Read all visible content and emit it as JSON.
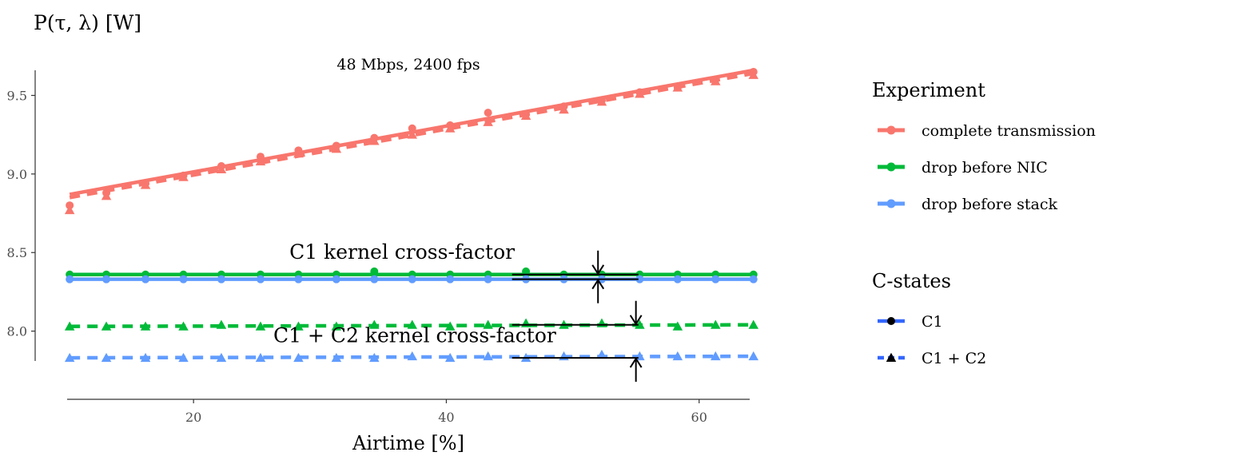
{
  "chart_data": {
    "type": "scatter",
    "title": "48 Mbps, 2400 fps",
    "ylabel": "P(τ, λ) [W]",
    "xlabel": "Airtime [%]",
    "xlim": [
      10,
      64
    ],
    "ylim": [
      7.81,
      9.66
    ],
    "x_ticks": [
      20,
      40,
      60
    ],
    "x_tick_labels": [
      "20",
      "40",
      "60"
    ],
    "y_ticks": [
      8.0,
      8.5,
      9.0,
      9.5
    ],
    "y_tick_labels": [
      "8.0",
      "8.5",
      "9.0",
      "9.5"
    ],
    "grid": false,
    "legend_position": "right",
    "x": [
      10.2,
      13.1,
      16.2,
      19.2,
      22.2,
      25.3,
      28.3,
      31.3,
      34.3,
      37.3,
      40.3,
      43.3,
      46.3,
      49.3,
      52.3,
      55.3,
      58.3,
      61.3,
      64.3
    ],
    "series": [
      {
        "name": "complete transmission",
        "experiment": "complete transmission",
        "cstates": "C1",
        "color": "#F8766D",
        "shape": "circle",
        "linetype": "solid",
        "values": [
          8.8,
          8.88,
          8.94,
          8.99,
          9.05,
          9.11,
          9.15,
          9.18,
          9.23,
          9.29,
          9.31,
          9.39,
          9.38,
          9.43,
          9.47,
          9.52,
          9.55,
          9.6,
          9.65
        ],
        "fit": [
          8.87,
          9.66
        ]
      },
      {
        "name": "complete transmission",
        "experiment": "complete transmission",
        "cstates": "C1 + C2",
        "color": "#F8766D",
        "shape": "triangle",
        "linetype": "dashed",
        "values": [
          8.77,
          8.86,
          8.93,
          8.98,
          9.03,
          9.08,
          9.13,
          9.16,
          9.21,
          9.25,
          9.29,
          9.33,
          9.37,
          9.41,
          9.46,
          9.51,
          9.55,
          9.59,
          9.63
        ],
        "fit": [
          8.85,
          9.64
        ]
      },
      {
        "name": "drop before NIC",
        "experiment": "drop before NIC",
        "cstates": "C1",
        "color": "#00BA38",
        "shape": "circle",
        "linetype": "solid",
        "values": [
          8.36,
          8.36,
          8.36,
          8.36,
          8.36,
          8.36,
          8.36,
          8.36,
          8.38,
          8.36,
          8.36,
          8.36,
          8.38,
          8.36,
          8.36,
          8.36,
          8.36,
          8.36,
          8.36
        ],
        "fit": [
          8.36,
          8.36
        ]
      },
      {
        "name": "drop before NIC",
        "experiment": "drop before NIC",
        "cstates": "C1 + C2",
        "color": "#00BA38",
        "shape": "triangle",
        "linetype": "dashed",
        "values": [
          8.03,
          8.03,
          8.03,
          8.03,
          8.04,
          8.03,
          8.03,
          8.03,
          8.04,
          8.04,
          8.03,
          8.04,
          8.05,
          8.04,
          8.05,
          8.04,
          8.03,
          8.04,
          8.04
        ],
        "fit": [
          8.03,
          8.04
        ]
      },
      {
        "name": "drop before stack",
        "experiment": "drop before stack",
        "cstates": "C1",
        "color": "#619CFF",
        "shape": "circle",
        "linetype": "solid",
        "values": [
          8.33,
          8.33,
          8.33,
          8.33,
          8.33,
          8.33,
          8.33,
          8.33,
          8.33,
          8.33,
          8.33,
          8.33,
          8.33,
          8.33,
          8.33,
          8.33,
          8.33,
          8.33,
          8.33
        ],
        "fit": [
          8.33,
          8.33
        ]
      },
      {
        "name": "drop before stack",
        "experiment": "drop before stack",
        "cstates": "C1 + C2",
        "color": "#619CFF",
        "shape": "triangle",
        "linetype": "dashed",
        "values": [
          7.83,
          7.83,
          7.83,
          7.83,
          7.83,
          7.83,
          7.83,
          7.83,
          7.83,
          7.84,
          7.83,
          7.84,
          7.83,
          7.84,
          7.85,
          7.84,
          7.84,
          7.84,
          7.84
        ],
        "fit": [
          7.83,
          7.84
        ]
      }
    ],
    "annotations": [
      {
        "text": "C1 kernel cross-factor",
        "x_text": 36.5,
        "y_text": 8.46,
        "x_start": 45.2,
        "x_end": 55.2,
        "y_top": 8.36,
        "y_bottom": 8.33,
        "x_arrow": 52
      },
      {
        "text": "C1 + C2 kernel cross-factor",
        "x_text": 37.5,
        "y_text": 7.93,
        "x_start": 45.2,
        "x_end": 55.2,
        "y_top": 8.04,
        "y_bottom": 7.83,
        "x_arrow": 55
      }
    ],
    "legend": {
      "experiment_title": "Experiment",
      "experiment_items": [
        {
          "label": "complete transmission",
          "color": "#F8766D"
        },
        {
          "label": "drop before NIC",
          "color": "#00BA38"
        },
        {
          "label": "drop before stack",
          "color": "#619CFF"
        }
      ],
      "cstates_title": "C-states",
      "cstates_items": [
        {
          "label": "C1",
          "shape": "circle",
          "linetype": "solid"
        },
        {
          "label": "C1 + C2",
          "shape": "triangle",
          "linetype": "dashed"
        }
      ]
    }
  }
}
